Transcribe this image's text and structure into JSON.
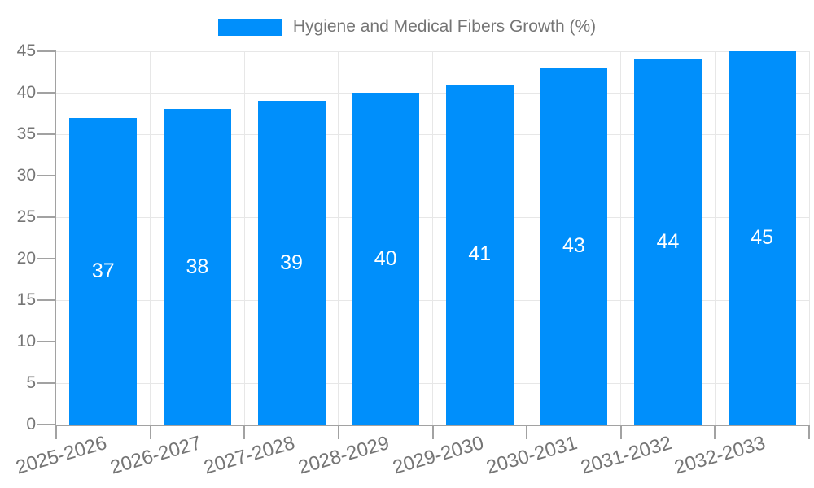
{
  "legend": {
    "label": "Hygiene and Medical Fibers Growth (%)",
    "swatch_color": "#008FFB"
  },
  "chart_data": {
    "type": "bar",
    "title": "Hygiene and Medical Fibers Growth (%)",
    "categories": [
      "2025-2026",
      "2026-2027",
      "2027-2028",
      "2028-2029",
      "2029-2030",
      "2030-2031",
      "2031-2032",
      "2032-2033"
    ],
    "values": [
      37,
      38,
      39,
      40,
      41,
      43,
      44,
      45
    ],
    "xlabel": "",
    "ylabel": "",
    "ylim": [
      0,
      45
    ],
    "yticks": [
      0,
      5,
      10,
      15,
      20,
      25,
      30,
      35,
      40,
      45
    ],
    "grid": true,
    "legend_position": "top-center",
    "colors": {
      "bar": "#008FFB",
      "value_label": "#ffffff",
      "axis_text": "#757575",
      "grid_line": "#e7e7e7",
      "axis_line": "#a2a2a2",
      "background": "#ffffff"
    }
  }
}
